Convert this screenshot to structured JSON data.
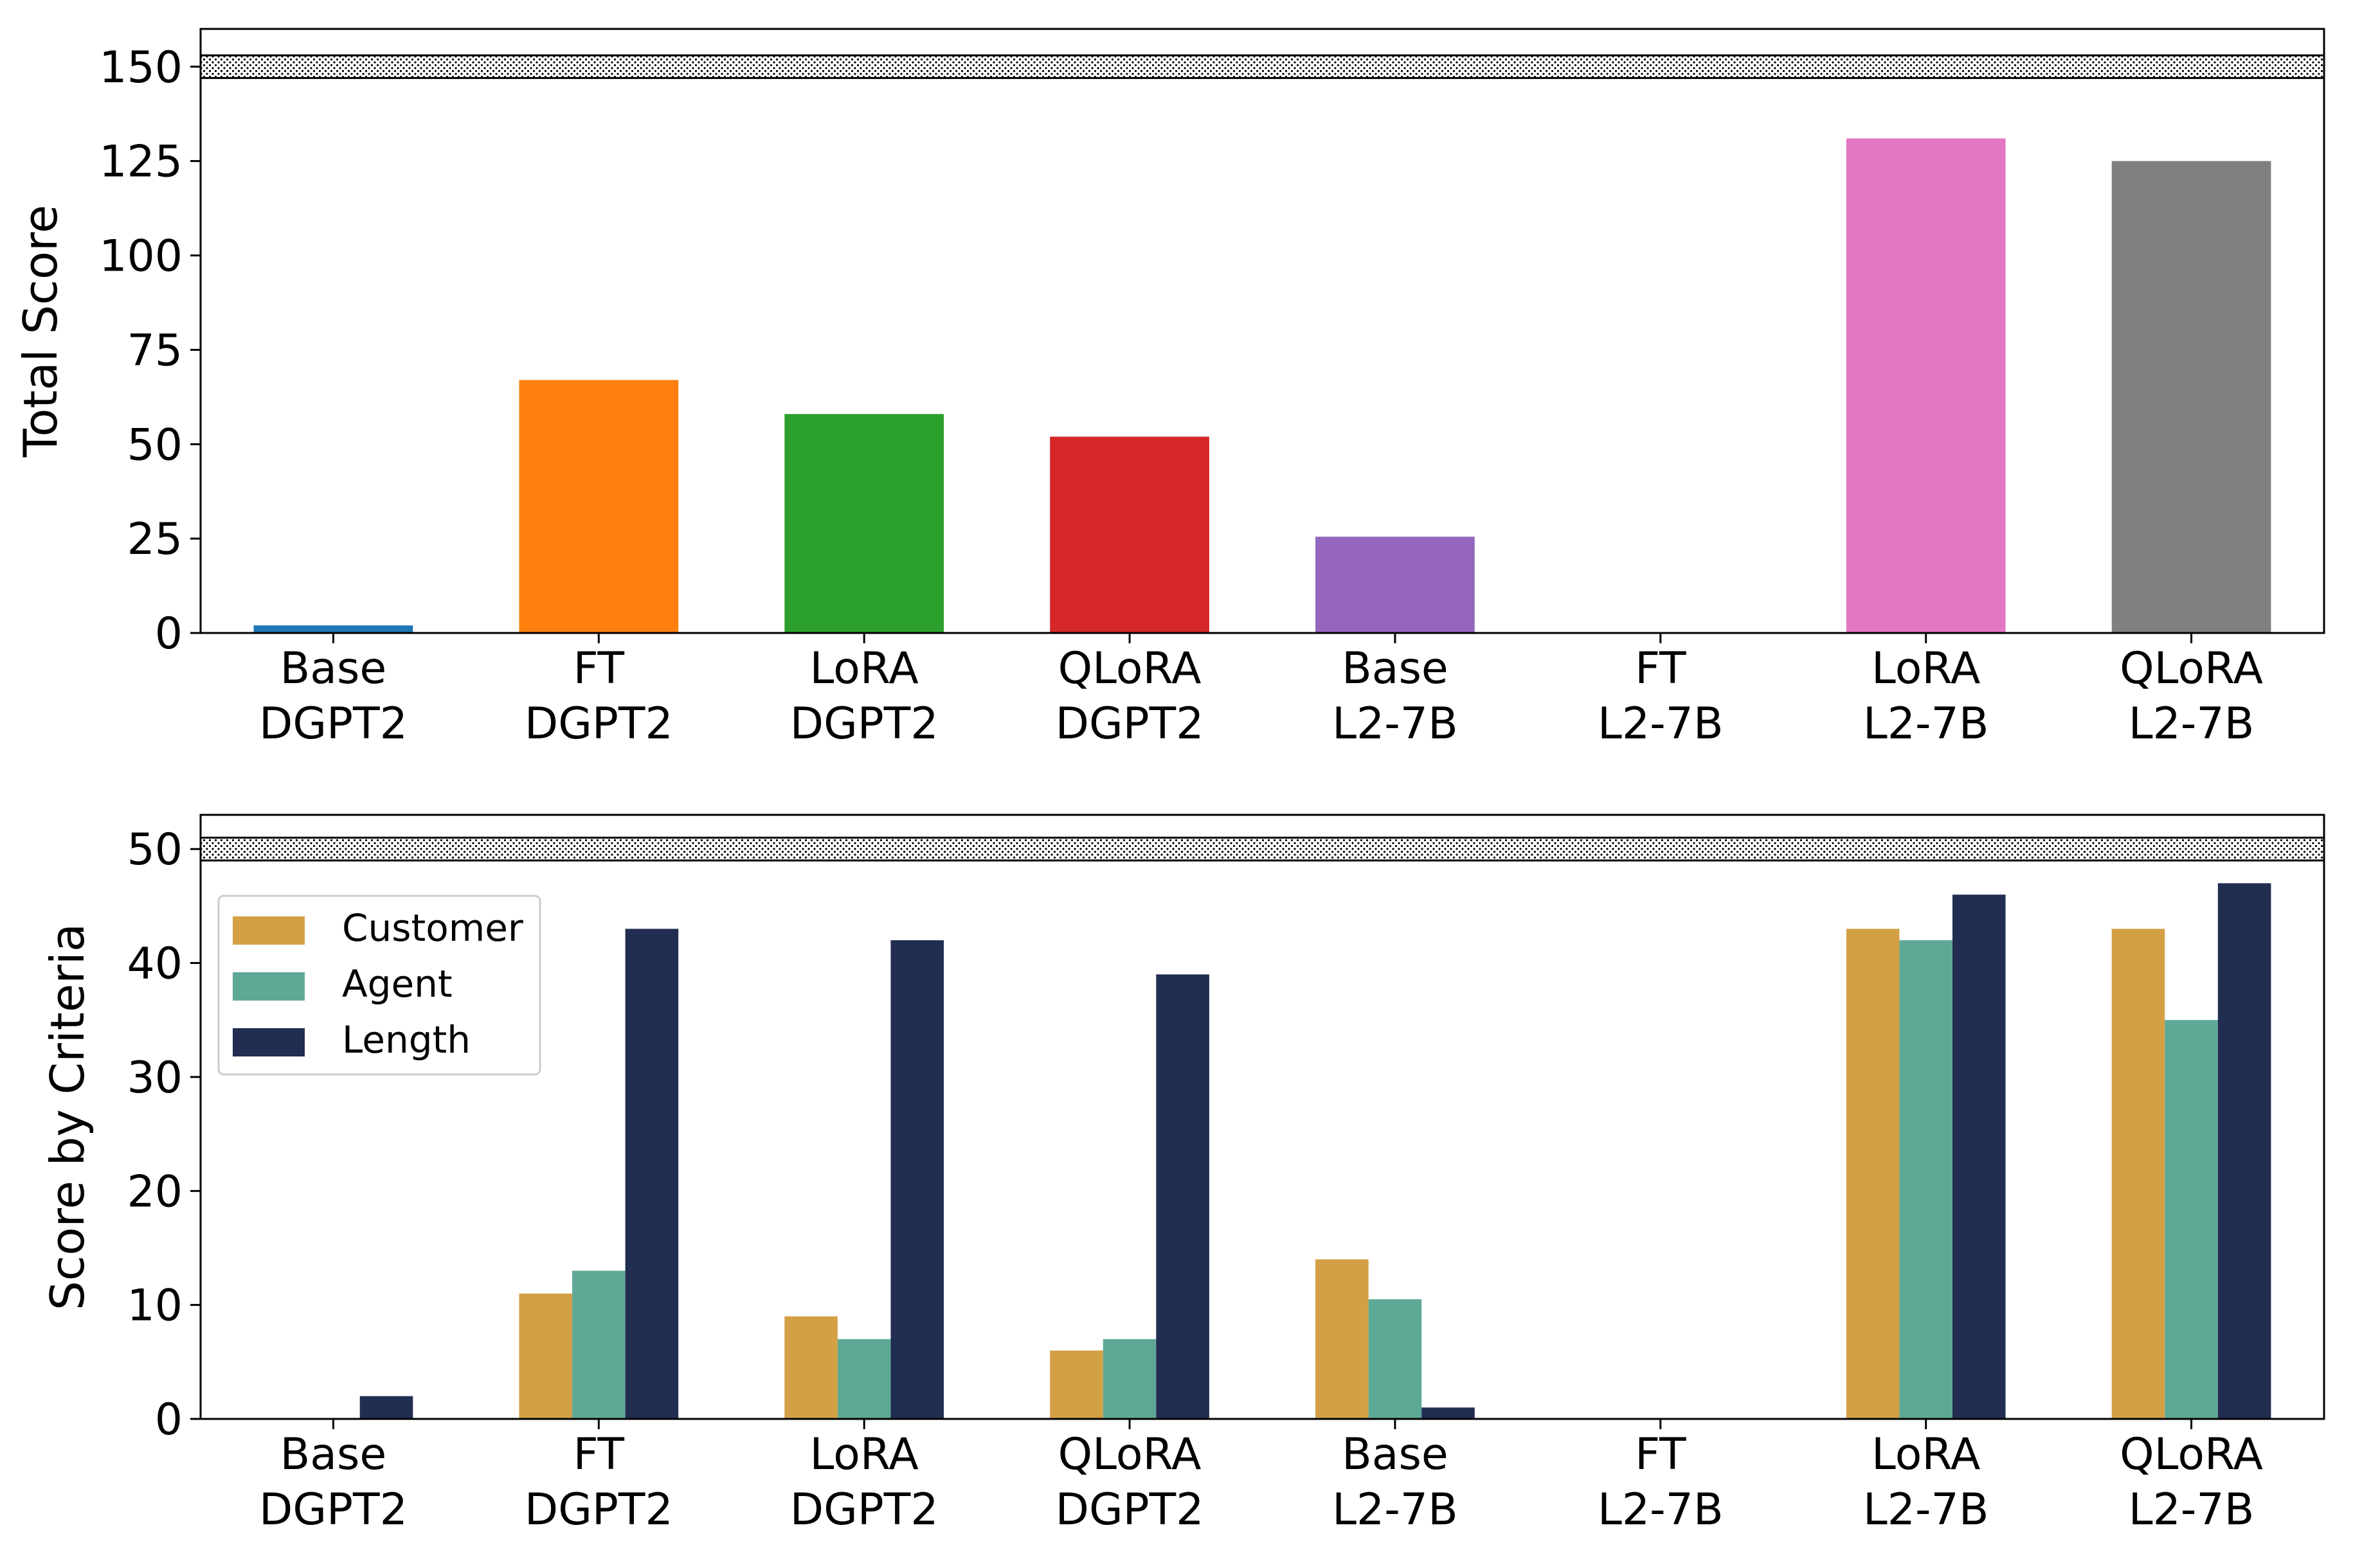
{
  "chart_data": [
    {
      "type": "bar",
      "categories": [
        [
          "Base",
          "DGPT2"
        ],
        [
          "FT",
          "DGPT2"
        ],
        [
          "LoRA",
          "DGPT2"
        ],
        [
          "QLoRA",
          "DGPT2"
        ],
        [
          "Base",
          "L2-7B"
        ],
        [
          "FT",
          "L2-7B"
        ],
        [
          "LoRA",
          "L2-7B"
        ],
        [
          "QLoRA",
          "L2-7B"
        ]
      ],
      "values": [
        2,
        67,
        58,
        52,
        25.5,
        0,
        131,
        125
      ],
      "colors": [
        "#1f77b4",
        "#ff7f0e",
        "#2ca02c",
        "#d62728",
        "#9467bd",
        "#8c564b",
        "#e377c2",
        "#7f7f7f"
      ],
      "ylabel": "Total Score",
      "ylim": [
        0,
        160
      ],
      "yticks": [
        0,
        25,
        50,
        75,
        100,
        125,
        150
      ],
      "reference_band": [
        147,
        153
      ],
      "grid": false
    },
    {
      "type": "bar",
      "categories": [
        [
          "Base",
          "DGPT2"
        ],
        [
          "FT",
          "DGPT2"
        ],
        [
          "LoRA",
          "DGPT2"
        ],
        [
          "QLoRA",
          "DGPT2"
        ],
        [
          "Base",
          "L2-7B"
        ],
        [
          "FT",
          "L2-7B"
        ],
        [
          "LoRA",
          "L2-7B"
        ],
        [
          "QLoRA",
          "L2-7B"
        ]
      ],
      "series": [
        {
          "name": "Customer",
          "color": "#d4a046",
          "values": [
            0,
            11,
            9,
            6,
            14,
            0,
            43,
            43
          ]
        },
        {
          "name": "Agent",
          "color": "#5ea996",
          "values": [
            0,
            13,
            7,
            7,
            10.5,
            0,
            42,
            35
          ]
        },
        {
          "name": "Length",
          "color": "#222d52",
          "values": [
            2,
            43,
            42,
            39,
            1,
            0,
            46,
            47
          ]
        }
      ],
      "ylabel": "Score by Criteria",
      "ylim": [
        0,
        53
      ],
      "yticks": [
        0,
        10,
        20,
        30,
        40,
        50
      ],
      "reference_band": [
        49,
        51
      ],
      "legend": "top-left",
      "grid": false
    }
  ]
}
